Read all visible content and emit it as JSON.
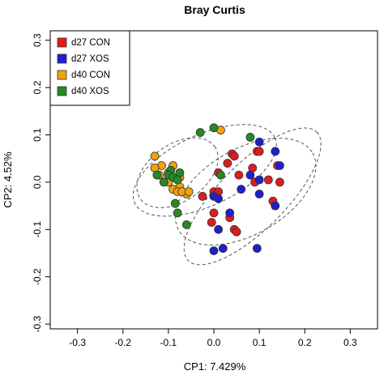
{
  "chart_data": {
    "type": "scatter",
    "title": "Bray Curtis",
    "xlabel": "CP1: 7.429%",
    "ylabel": "CP2: 4.52%",
    "xlim": [
      -0.36,
      0.36
    ],
    "ylim": [
      -0.31,
      0.32
    ],
    "x_ticks": [
      -0.3,
      -0.2,
      -0.1,
      0.0,
      0.1,
      0.2,
      0.3
    ],
    "y_ticks": [
      -0.3,
      -0.2,
      -0.1,
      0.0,
      0.1,
      0.2,
      0.3
    ],
    "x_tick_labels": [
      "-0.3",
      "-0.2",
      "-0.1",
      "0.0",
      "0.1",
      "0.2",
      "0.3"
    ],
    "y_tick_labels": [
      "-0.3",
      "-0.2",
      "-0.1",
      "0.0",
      "0.1",
      "0.2",
      "0.3"
    ],
    "legend_position": "top-left",
    "series": [
      {
        "name": "d27 CON",
        "color": "#e41a1c",
        "points": [
          [
            0.04,
            0.06
          ],
          [
            0.045,
            0.055
          ],
          [
            0.03,
            0.04
          ],
          [
            0.095,
            0.065
          ],
          [
            0.1,
            0.065
          ],
          [
            0.085,
            0.03
          ],
          [
            0.01,
            0.02
          ],
          [
            0.14,
            0.035
          ],
          [
            0.145,
            0.0
          ],
          [
            0.09,
            0.0
          ],
          [
            0.12,
            0.005
          ],
          [
            0.055,
            0.015
          ],
          [
            -0.025,
            -0.03
          ],
          [
            0.0,
            -0.02
          ],
          [
            0.01,
            -0.02
          ],
          [
            0.13,
            -0.04
          ],
          [
            0.0,
            -0.065
          ],
          [
            0.035,
            -0.075
          ],
          [
            -0.005,
            -0.085
          ],
          [
            0.045,
            -0.1
          ],
          [
            0.05,
            -0.105
          ]
        ]
      },
      {
        "name": "d27 XOS",
        "color": "#1f1fd1",
        "points": [
          [
            0.1,
            0.085
          ],
          [
            0.135,
            0.065
          ],
          [
            0.145,
            0.035
          ],
          [
            0.08,
            0.015
          ],
          [
            0.1,
            0.005
          ],
          [
            0.06,
            -0.015
          ],
          [
            0.0,
            -0.03
          ],
          [
            0.01,
            -0.035
          ],
          [
            0.1,
            -0.025
          ],
          [
            0.135,
            -0.05
          ],
          [
            0.035,
            -0.065
          ],
          [
            0.01,
            -0.1
          ],
          [
            0.02,
            -0.14
          ],
          [
            0.0,
            -0.145
          ],
          [
            0.095,
            -0.14
          ]
        ]
      },
      {
        "name": "d40 CON",
        "color": "#f2a20c",
        "points": [
          [
            0.015,
            0.11
          ],
          [
            -0.13,
            0.055
          ],
          [
            -0.115,
            0.035
          ],
          [
            -0.13,
            0.03
          ],
          [
            -0.09,
            0.035
          ],
          [
            -0.1,
            0.02
          ],
          [
            -0.12,
            0.015
          ],
          [
            -0.1,
            0.0
          ],
          [
            -0.075,
            -0.01
          ],
          [
            -0.09,
            -0.015
          ],
          [
            -0.06,
            -0.025
          ],
          [
            -0.08,
            -0.02
          ],
          [
            -0.07,
            -0.02
          ],
          [
            -0.055,
            -0.02
          ],
          [
            -0.075,
            0.01
          ]
        ]
      },
      {
        "name": "d40 XOS",
        "color": "#238b23",
        "points": [
          [
            0.0,
            0.115
          ],
          [
            -0.03,
            0.105
          ],
          [
            0.08,
            0.095
          ],
          [
            -0.125,
            0.015
          ],
          [
            -0.095,
            0.025
          ],
          [
            -0.1,
            0.015
          ],
          [
            -0.09,
            0.01
          ],
          [
            -0.075,
            0.02
          ],
          [
            -0.08,
            0.005
          ],
          [
            -0.11,
            0.0
          ],
          [
            0.015,
            0.015
          ],
          [
            -0.085,
            -0.045
          ],
          [
            -0.08,
            -0.065
          ],
          [
            -0.06,
            -0.09
          ]
        ]
      }
    ],
    "ellipses": [
      {
        "cx": -0.02,
        "cy": 0.025,
        "rx": 0.17,
        "ry": 0.075,
        "angle_deg": -25
      },
      {
        "cx": -0.08,
        "cy": 0.02,
        "rx": 0.1,
        "ry": 0.06,
        "angle_deg": -35
      },
      {
        "cx": 0.07,
        "cy": -0.02,
        "rx": 0.17,
        "ry": 0.09,
        "angle_deg": -30
      },
      {
        "cx": 0.085,
        "cy": -0.03,
        "rx": 0.2,
        "ry": 0.07,
        "angle_deg": -45
      }
    ]
  }
}
